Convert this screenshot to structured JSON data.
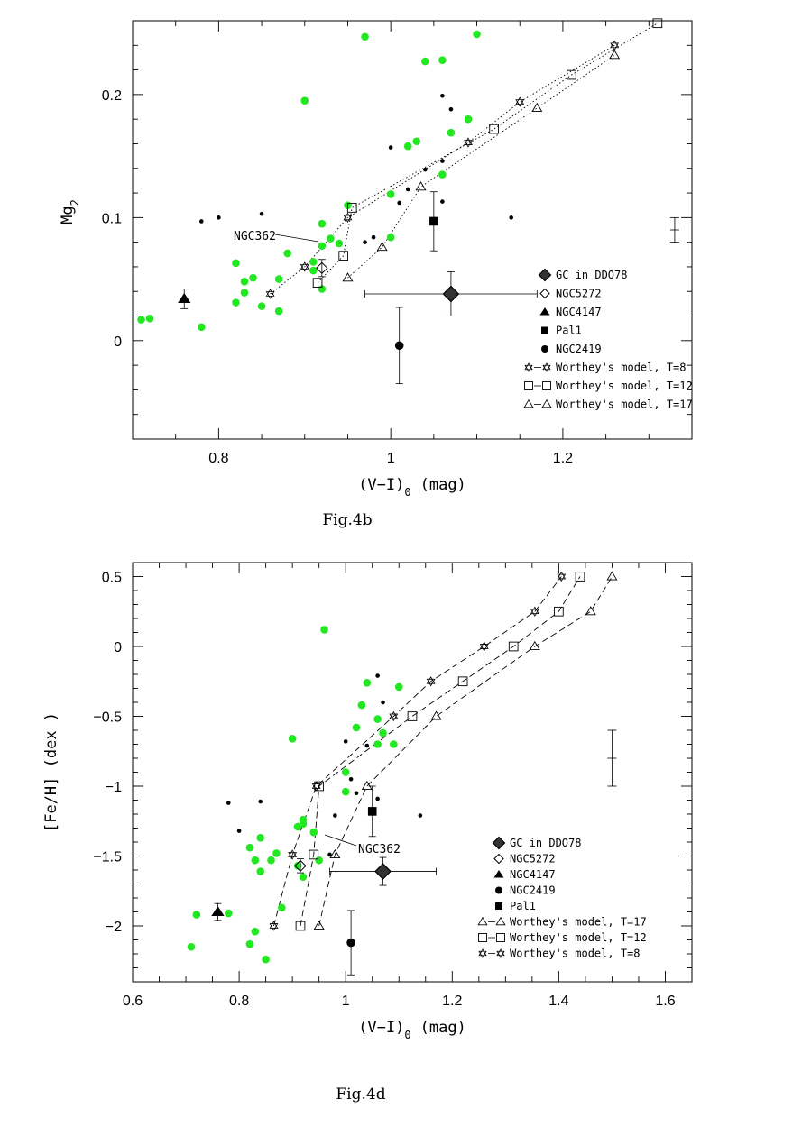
{
  "chart_data": [
    {
      "type": "scatter",
      "caption": "Fig.4b",
      "xlabel": "(V−I)",
      "xlabel_sub": "0",
      "xlabel_unit": "(mag)",
      "ylabel": "Mg",
      "ylabel_sub": "2",
      "xlim": [
        0.7,
        1.35
      ],
      "ylim": [
        -0.08,
        0.26
      ],
      "x_ticks": [
        0.8,
        1.0,
        1.2
      ],
      "x_tick_labels": [
        "0.8",
        "1",
        "1.2"
      ],
      "y_ticks": [
        0,
        0.1,
        0.2
      ],
      "y_tick_labels": [
        "0",
        "0.1",
        "0.2"
      ],
      "annotation": "NGC362",
      "green_points": [
        [
          0.71,
          0.017
        ],
        [
          0.72,
          0.018
        ],
        [
          0.78,
          0.011
        ],
        [
          0.82,
          0.031
        ],
        [
          0.82,
          0.063
        ],
        [
          0.83,
          0.048
        ],
        [
          0.83,
          0.039
        ],
        [
          0.84,
          0.051
        ],
        [
          0.85,
          0.028
        ],
        [
          0.87,
          0.024
        ],
        [
          0.87,
          0.05
        ],
        [
          0.88,
          0.071
        ],
        [
          0.9,
          0.195
        ],
        [
          0.91,
          0.064
        ],
        [
          0.91,
          0.057
        ],
        [
          0.92,
          0.042
        ],
        [
          0.92,
          0.077
        ],
        [
          0.92,
          0.095
        ],
        [
          0.93,
          0.083
        ],
        [
          0.94,
          0.079
        ],
        [
          0.95,
          0.11
        ],
        [
          0.97,
          0.247
        ],
        [
          1.0,
          0.084
        ],
        [
          1.0,
          0.119
        ],
        [
          1.02,
          0.158
        ],
        [
          1.03,
          0.162
        ],
        [
          1.04,
          0.227
        ],
        [
          1.06,
          0.228
        ],
        [
          1.06,
          0.135
        ],
        [
          1.07,
          0.169
        ],
        [
          1.09,
          0.18
        ],
        [
          1.1,
          0.249
        ]
      ],
      "black_points": [
        [
          0.78,
          0.097
        ],
        [
          0.8,
          0.1
        ],
        [
          0.85,
          0.103
        ],
        [
          0.97,
          0.08
        ],
        [
          0.98,
          0.084
        ],
        [
          1.0,
          0.157
        ],
        [
          1.01,
          0.112
        ],
        [
          1.02,
          0.123
        ],
        [
          1.04,
          0.139
        ],
        [
          1.06,
          0.146
        ],
        [
          1.06,
          0.113
        ],
        [
          1.06,
          0.199
        ],
        [
          1.07,
          0.188
        ],
        [
          1.14,
          0.1
        ]
      ],
      "series": [
        {
          "name": "GC in DDO78",
          "marker": "filled-diamond-large",
          "points": [
            [
              1.07,
              0.038,
              0.1,
              0.018
            ]
          ]
        },
        {
          "name": "NGC5272",
          "marker": "open-diamond",
          "points": [
            [
              0.92,
              0.059,
              0,
              0.007
            ]
          ]
        },
        {
          "name": "NGC4147",
          "marker": "filled-triangle",
          "points": [
            [
              0.76,
              0.034,
              0,
              0.008
            ]
          ]
        },
        {
          "name": "Pal1",
          "marker": "filled-square",
          "points": [
            [
              1.05,
              0.097,
              0,
              0.024
            ]
          ]
        },
        {
          "name": "NGC2419",
          "marker": "filled-circle",
          "points": [
            [
              1.01,
              -0.004,
              0,
              0.031
            ]
          ]
        },
        {
          "name": "Worthey's model, T=8",
          "marker": "open-star",
          "points": [
            [
              0.86,
              0.038
            ],
            [
              0.9,
              0.06
            ],
            [
              0.95,
              0.1
            ],
            [
              1.09,
              0.161
            ],
            [
              1.15,
              0.194
            ],
            [
              1.26,
              0.24
            ]
          ]
        },
        {
          "name": "Worthey's model, T=12",
          "marker": "open-square",
          "points": [
            [
              0.915,
              0.047
            ],
            [
              0.945,
              0.069
            ],
            [
              0.955,
              0.108
            ],
            [
              1.12,
              0.172
            ],
            [
              1.21,
              0.216
            ],
            [
              1.31,
              0.258
            ]
          ]
        },
        {
          "name": "Worthey's model, T=17",
          "marker": "open-triangle",
          "points": [
            [
              0.95,
              0.051
            ],
            [
              0.99,
              0.076
            ],
            [
              1.035,
              0.125
            ],
            [
              1.17,
              0.189
            ],
            [
              1.26,
              0.232
            ]
          ]
        }
      ],
      "typical_error": {
        "x": 1.33,
        "y": 0.09,
        "dy": 0.01
      }
    },
    {
      "type": "scatter",
      "caption": "Fig.4d",
      "xlabel": "(V−I)",
      "xlabel_sub": "0",
      "xlabel_unit": "(mag)",
      "ylabel": "[Fe/H] (dex )",
      "xlim": [
        0.6,
        1.65
      ],
      "ylim": [
        -2.4,
        0.6
      ],
      "x_ticks": [
        0.6,
        0.8,
        1.0,
        1.2,
        1.4,
        1.6
      ],
      "x_tick_labels": [
        "0.6",
        "0.8",
        "1",
        "1.2",
        "1.4",
        "1.6"
      ],
      "y_ticks": [
        -2,
        -1.5,
        -1,
        -0.5,
        0,
        0.5
      ],
      "y_tick_labels": [
        "−2",
        "−1.5",
        "−1",
        "−0.5",
        "0",
        "0.5"
      ],
      "annotation": "NGC362",
      "green_points": [
        [
          0.71,
          -2.15
        ],
        [
          0.72,
          -1.92
        ],
        [
          0.78,
          -1.91
        ],
        [
          0.82,
          -1.44
        ],
        [
          0.82,
          -2.13
        ],
        [
          0.83,
          -2.04
        ],
        [
          0.83,
          -1.53
        ],
        [
          0.84,
          -1.37
        ],
        [
          0.84,
          -1.61
        ],
        [
          0.85,
          -2.24
        ],
        [
          0.86,
          -1.53
        ],
        [
          0.87,
          -1.48
        ],
        [
          0.88,
          -1.87
        ],
        [
          0.9,
          -0.66
        ],
        [
          0.91,
          -1.29
        ],
        [
          0.91,
          -1.57
        ],
        [
          0.92,
          -1.24
        ],
        [
          0.92,
          -1.27
        ],
        [
          0.92,
          -1.65
        ],
        [
          0.94,
          -1.33
        ],
        [
          0.95,
          -1.53
        ],
        [
          0.96,
          0.12
        ],
        [
          1.0,
          -1.04
        ],
        [
          1.0,
          -0.9
        ],
        [
          1.02,
          -0.58
        ],
        [
          1.03,
          -0.42
        ],
        [
          1.04,
          -0.26
        ],
        [
          1.06,
          -0.52
        ],
        [
          1.06,
          -0.7
        ],
        [
          1.07,
          -0.62
        ],
        [
          1.09,
          -0.7
        ],
        [
          1.1,
          -0.29
        ]
      ],
      "black_points": [
        [
          0.78,
          -1.12
        ],
        [
          0.8,
          -1.32
        ],
        [
          0.84,
          -1.11
        ],
        [
          0.97,
          -1.49
        ],
        [
          0.98,
          -1.21
        ],
        [
          1.0,
          -0.68
        ],
        [
          1.01,
          -0.95
        ],
        [
          1.02,
          -1.05
        ],
        [
          1.04,
          -0.71
        ],
        [
          1.06,
          -0.21
        ],
        [
          1.06,
          -1.09
        ],
        [
          1.07,
          -0.4
        ],
        [
          1.14,
          -1.21
        ]
      ],
      "series": [
        {
          "name": "GC in DDO78",
          "marker": "filled-diamond-large",
          "points": [
            [
              1.07,
              -1.61,
              0.1,
              0.1
            ]
          ]
        },
        {
          "name": "NGC5272",
          "marker": "open-diamond",
          "points": [
            [
              0.915,
              -1.57,
              0,
              0.05
            ]
          ]
        },
        {
          "name": "NGC4147",
          "marker": "filled-triangle",
          "points": [
            [
              0.76,
              -1.9,
              0,
              0.06
            ]
          ]
        },
        {
          "name": "NGC2419",
          "marker": "filled-circle",
          "points": [
            [
              1.01,
              -2.12,
              0,
              0.23
            ]
          ]
        },
        {
          "name": "Pal1",
          "marker": "filled-square",
          "points": [
            [
              1.05,
              -1.18,
              0,
              0.18
            ]
          ]
        },
        {
          "name": "Worthey's model, T=17",
          "marker": "open-triangle",
          "points": [
            [
              0.95,
              -2.0
            ],
            [
              0.98,
              -1.49
            ],
            [
              1.04,
              -1.0
            ],
            [
              1.17,
              -0.5
            ],
            [
              1.355,
              0.0
            ],
            [
              1.46,
              0.25
            ],
            [
              1.5,
              0.5
            ]
          ]
        },
        {
          "name": "Worthey's model, T=12",
          "marker": "open-square",
          "points": [
            [
              0.915,
              -2.0
            ],
            [
              0.94,
              -1.49
            ],
            [
              0.95,
              -1.0
            ],
            [
              1.125,
              -0.5
            ],
            [
              1.22,
              -0.25
            ],
            [
              1.315,
              0.0
            ],
            [
              1.4,
              0.25
            ],
            [
              1.44,
              0.5
            ]
          ]
        },
        {
          "name": "Worthey's model, T=8",
          "marker": "open-star",
          "points": [
            [
              0.865,
              -2.0
            ],
            [
              0.9,
              -1.49
            ],
            [
              0.945,
              -1.0
            ],
            [
              1.09,
              -0.5
            ],
            [
              1.16,
              -0.25
            ],
            [
              1.26,
              0.0
            ],
            [
              1.355,
              0.25
            ],
            [
              1.405,
              0.5
            ]
          ]
        }
      ],
      "typical_error": {
        "x": 1.5,
        "y": -0.8,
        "dy": 0.2
      }
    }
  ]
}
